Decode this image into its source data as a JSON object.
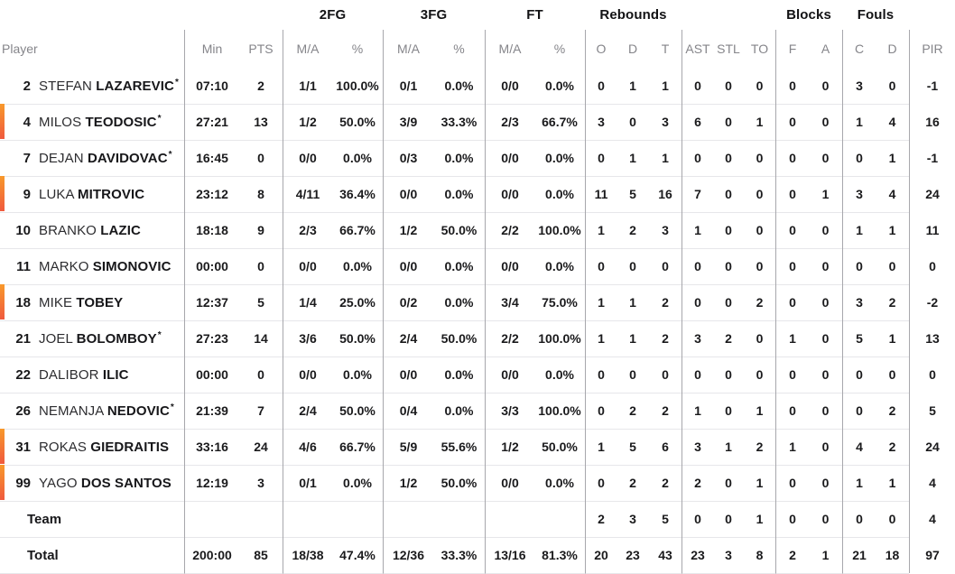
{
  "table": {
    "groups": {
      "fg2": "2FG",
      "fg3": "3FG",
      "ft": "FT",
      "rebounds": "Rebounds",
      "blocks": "Blocks",
      "fouls": "Fouls"
    },
    "columns": {
      "player": "Player",
      "min": "Min",
      "pts": "PTS",
      "ma": "M/A",
      "pct": "%",
      "reb_o": "O",
      "reb_d": "D",
      "reb_t": "T",
      "ast": "AST",
      "stl": "STL",
      "to": "TO",
      "blk_f": "F",
      "blk_a": "A",
      "foul_c": "C",
      "foul_d": "D",
      "pir": "PIR"
    },
    "rows": [
      {
        "number": "2",
        "first": "STEFAN",
        "last": "LAZAREVIC",
        "starter": true,
        "on_court": false,
        "min": "07:10",
        "pts": "2",
        "fg2_ma": "1/1",
        "fg2_pct": "100.0%",
        "fg3_ma": "0/1",
        "fg3_pct": "0.0%",
        "ft_ma": "0/0",
        "ft_pct": "0.0%",
        "reb_o": "0",
        "reb_d": "1",
        "reb_t": "1",
        "ast": "0",
        "stl": "0",
        "to": "0",
        "blk_f": "0",
        "blk_a": "0",
        "foul_c": "3",
        "foul_d": "0",
        "pir": "-1"
      },
      {
        "number": "4",
        "first": "MILOS",
        "last": "TEODOSIC",
        "starter": true,
        "on_court": true,
        "min": "27:21",
        "pts": "13",
        "fg2_ma": "1/2",
        "fg2_pct": "50.0%",
        "fg3_ma": "3/9",
        "fg3_pct": "33.3%",
        "ft_ma": "2/3",
        "ft_pct": "66.7%",
        "reb_o": "3",
        "reb_d": "0",
        "reb_t": "3",
        "ast": "6",
        "stl": "0",
        "to": "1",
        "blk_f": "0",
        "blk_a": "0",
        "foul_c": "1",
        "foul_d": "4",
        "pir": "16"
      },
      {
        "number": "7",
        "first": "DEJAN",
        "last": "DAVIDOVAC",
        "starter": true,
        "on_court": false,
        "min": "16:45",
        "pts": "0",
        "fg2_ma": "0/0",
        "fg2_pct": "0.0%",
        "fg3_ma": "0/3",
        "fg3_pct": "0.0%",
        "ft_ma": "0/0",
        "ft_pct": "0.0%",
        "reb_o": "0",
        "reb_d": "1",
        "reb_t": "1",
        "ast": "0",
        "stl": "0",
        "to": "0",
        "blk_f": "0",
        "blk_a": "0",
        "foul_c": "0",
        "foul_d": "1",
        "pir": "-1"
      },
      {
        "number": "9",
        "first": "LUKA",
        "last": "MITROVIC",
        "starter": false,
        "on_court": true,
        "min": "23:12",
        "pts": "8",
        "fg2_ma": "4/11",
        "fg2_pct": "36.4%",
        "fg3_ma": "0/0",
        "fg3_pct": "0.0%",
        "ft_ma": "0/0",
        "ft_pct": "0.0%",
        "reb_o": "11",
        "reb_d": "5",
        "reb_t": "16",
        "ast": "7",
        "stl": "0",
        "to": "0",
        "blk_f": "0",
        "blk_a": "1",
        "foul_c": "3",
        "foul_d": "4",
        "pir": "24"
      },
      {
        "number": "10",
        "first": "BRANKO",
        "last": "LAZIC",
        "starter": false,
        "on_court": false,
        "min": "18:18",
        "pts": "9",
        "fg2_ma": "2/3",
        "fg2_pct": "66.7%",
        "fg3_ma": "1/2",
        "fg3_pct": "50.0%",
        "ft_ma": "2/2",
        "ft_pct": "100.0%",
        "reb_o": "1",
        "reb_d": "2",
        "reb_t": "3",
        "ast": "1",
        "stl": "0",
        "to": "0",
        "blk_f": "0",
        "blk_a": "0",
        "foul_c": "1",
        "foul_d": "1",
        "pir": "11"
      },
      {
        "number": "11",
        "first": "MARKO",
        "last": "SIMONOVIC",
        "starter": false,
        "on_court": false,
        "min": "00:00",
        "pts": "0",
        "fg2_ma": "0/0",
        "fg2_pct": "0.0%",
        "fg3_ma": "0/0",
        "fg3_pct": "0.0%",
        "ft_ma": "0/0",
        "ft_pct": "0.0%",
        "reb_o": "0",
        "reb_d": "0",
        "reb_t": "0",
        "ast": "0",
        "stl": "0",
        "to": "0",
        "blk_f": "0",
        "blk_a": "0",
        "foul_c": "0",
        "foul_d": "0",
        "pir": "0"
      },
      {
        "number": "18",
        "first": "MIKE",
        "last": "TOBEY",
        "starter": false,
        "on_court": true,
        "min": "12:37",
        "pts": "5",
        "fg2_ma": "1/4",
        "fg2_pct": "25.0%",
        "fg3_ma": "0/2",
        "fg3_pct": "0.0%",
        "ft_ma": "3/4",
        "ft_pct": "75.0%",
        "reb_o": "1",
        "reb_d": "1",
        "reb_t": "2",
        "ast": "0",
        "stl": "0",
        "to": "2",
        "blk_f": "0",
        "blk_a": "0",
        "foul_c": "3",
        "foul_d": "2",
        "pir": "-2"
      },
      {
        "number": "21",
        "first": "JOEL",
        "last": "BOLOMBOY",
        "starter": true,
        "on_court": false,
        "min": "27:23",
        "pts": "14",
        "fg2_ma": "3/6",
        "fg2_pct": "50.0%",
        "fg3_ma": "2/4",
        "fg3_pct": "50.0%",
        "ft_ma": "2/2",
        "ft_pct": "100.0%",
        "reb_o": "1",
        "reb_d": "1",
        "reb_t": "2",
        "ast": "3",
        "stl": "2",
        "to": "0",
        "blk_f": "1",
        "blk_a": "0",
        "foul_c": "5",
        "foul_d": "1",
        "pir": "13"
      },
      {
        "number": "22",
        "first": "DALIBOR",
        "last": "ILIC",
        "starter": false,
        "on_court": false,
        "min": "00:00",
        "pts": "0",
        "fg2_ma": "0/0",
        "fg2_pct": "0.0%",
        "fg3_ma": "0/0",
        "fg3_pct": "0.0%",
        "ft_ma": "0/0",
        "ft_pct": "0.0%",
        "reb_o": "0",
        "reb_d": "0",
        "reb_t": "0",
        "ast": "0",
        "stl": "0",
        "to": "0",
        "blk_f": "0",
        "blk_a": "0",
        "foul_c": "0",
        "foul_d": "0",
        "pir": "0"
      },
      {
        "number": "26",
        "first": "NEMANJA",
        "last": "NEDOVIC",
        "starter": true,
        "on_court": false,
        "min": "21:39",
        "pts": "7",
        "fg2_ma": "2/4",
        "fg2_pct": "50.0%",
        "fg3_ma": "0/4",
        "fg3_pct": "0.0%",
        "ft_ma": "3/3",
        "ft_pct": "100.0%",
        "reb_o": "0",
        "reb_d": "2",
        "reb_t": "2",
        "ast": "1",
        "stl": "0",
        "to": "1",
        "blk_f": "0",
        "blk_a": "0",
        "foul_c": "0",
        "foul_d": "2",
        "pir": "5"
      },
      {
        "number": "31",
        "first": "ROKAS",
        "last": "GIEDRAITIS",
        "starter": false,
        "on_court": true,
        "min": "33:16",
        "pts": "24",
        "fg2_ma": "4/6",
        "fg2_pct": "66.7%",
        "fg3_ma": "5/9",
        "fg3_pct": "55.6%",
        "ft_ma": "1/2",
        "ft_pct": "50.0%",
        "reb_o": "1",
        "reb_d": "5",
        "reb_t": "6",
        "ast": "3",
        "stl": "1",
        "to": "2",
        "blk_f": "1",
        "blk_a": "0",
        "foul_c": "4",
        "foul_d": "2",
        "pir": "24"
      },
      {
        "number": "99",
        "first": "YAGO",
        "last": "DOS SANTOS",
        "starter": false,
        "on_court": true,
        "min": "12:19",
        "pts": "3",
        "fg2_ma": "0/1",
        "fg2_pct": "0.0%",
        "fg3_ma": "1/2",
        "fg3_pct": "50.0%",
        "ft_ma": "0/0",
        "ft_pct": "0.0%",
        "reb_o": "0",
        "reb_d": "2",
        "reb_t": "2",
        "ast": "2",
        "stl": "0",
        "to": "1",
        "blk_f": "0",
        "blk_a": "0",
        "foul_c": "1",
        "foul_d": "1",
        "pir": "4"
      },
      {
        "label": "Team",
        "starter": false,
        "on_court": false,
        "min": "",
        "pts": "",
        "fg2_ma": "",
        "fg2_pct": "",
        "fg3_ma": "",
        "fg3_pct": "",
        "ft_ma": "",
        "ft_pct": "",
        "reb_o": "2",
        "reb_d": "3",
        "reb_t": "5",
        "ast": "0",
        "stl": "0",
        "to": "1",
        "blk_f": "0",
        "blk_a": "0",
        "foul_c": "0",
        "foul_d": "0",
        "pir": "4"
      },
      {
        "label": "Total",
        "starter": false,
        "on_court": false,
        "min": "200:00",
        "pts": "85",
        "fg2_ma": "18/38",
        "fg2_pct": "47.4%",
        "fg3_ma": "12/36",
        "fg3_pct": "33.3%",
        "ft_ma": "13/16",
        "ft_pct": "81.3%",
        "reb_o": "20",
        "reb_d": "23",
        "reb_t": "43",
        "ast": "23",
        "stl": "3",
        "to": "8",
        "blk_f": "2",
        "blk_a": "1",
        "foul_c": "21",
        "foul_d": "18",
        "pir": "97"
      }
    ]
  },
  "colors": {
    "on_court_gradient_top": "#f8992b",
    "on_court_gradient_bottom": "#f05a3e",
    "header_text": "#85858a",
    "body_text": "#1a1a1c",
    "grid_vertical_line": "#a7a7ac",
    "grid_horizontal_line": "#e7e7ea"
  }
}
